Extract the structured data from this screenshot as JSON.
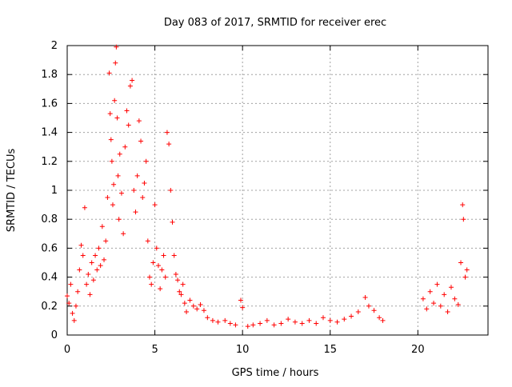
{
  "chart_data": {
    "type": "scatter",
    "title": "Day 083 of 2017, SRMTID for receiver erec",
    "xlabel": "GPS time / hours",
    "ylabel": "SRMTID / TECUs",
    "xlim": [
      0,
      24
    ],
    "ylim": [
      0,
      2
    ],
    "xticks": [
      0,
      5,
      10,
      15,
      20
    ],
    "xtick_labels": [
      "0",
      "5",
      "10",
      "15",
      "20"
    ],
    "yticks": [
      0,
      0.2,
      0.4,
      0.6,
      0.8,
      1,
      1.2,
      1.4,
      1.6,
      1.8,
      2
    ],
    "ytick_labels": [
      "0",
      "0.2",
      "0.4",
      "0.6",
      "0.8",
      "1",
      "1.2",
      "1.4",
      "1.6",
      "1.8",
      "2"
    ],
    "grid": true,
    "marker": "+",
    "marker_color": "#ff0000",
    "series": [
      {
        "name": "SRMTID",
        "points": [
          [
            0.0,
            0.27
          ],
          [
            0.1,
            0.22
          ],
          [
            0.2,
            0.35
          ],
          [
            0.3,
            0.15
          ],
          [
            0.4,
            0.1
          ],
          [
            0.5,
            0.2
          ],
          [
            0.6,
            0.3
          ],
          [
            0.7,
            0.45
          ],
          [
            0.8,
            0.62
          ],
          [
            0.9,
            0.55
          ],
          [
            1.0,
            0.88
          ],
          [
            1.1,
            0.35
          ],
          [
            1.2,
            0.42
          ],
          [
            1.3,
            0.28
          ],
          [
            1.4,
            0.5
          ],
          [
            1.5,
            0.38
          ],
          [
            1.6,
            0.55
          ],
          [
            1.7,
            0.45
          ],
          [
            1.8,
            0.6
          ],
          [
            1.9,
            0.48
          ],
          [
            2.0,
            0.75
          ],
          [
            2.1,
            0.52
          ],
          [
            2.2,
            0.65
          ],
          [
            2.3,
            0.95
          ],
          [
            2.4,
            1.81
          ],
          [
            2.45,
            1.53
          ],
          [
            2.5,
            1.35
          ],
          [
            2.55,
            1.2
          ],
          [
            2.6,
            0.9
          ],
          [
            2.65,
            1.04
          ],
          [
            2.7,
            1.62
          ],
          [
            2.75,
            1.88
          ],
          [
            2.8,
            1.99
          ],
          [
            2.85,
            1.5
          ],
          [
            2.9,
            1.1
          ],
          [
            2.95,
            0.8
          ],
          [
            3.0,
            1.25
          ],
          [
            3.1,
            0.98
          ],
          [
            3.2,
            0.7
          ],
          [
            3.3,
            1.3
          ],
          [
            3.4,
            1.55
          ],
          [
            3.5,
            1.45
          ],
          [
            3.6,
            1.72
          ],
          [
            3.7,
            1.76
          ],
          [
            3.8,
            1.0
          ],
          [
            3.9,
            0.85
          ],
          [
            4.0,
            1.1
          ],
          [
            4.1,
            1.48
          ],
          [
            4.2,
            1.34
          ],
          [
            4.3,
            0.95
          ],
          [
            4.4,
            1.05
          ],
          [
            4.5,
            1.2
          ],
          [
            4.6,
            0.65
          ],
          [
            4.7,
            0.4
          ],
          [
            4.8,
            0.35
          ],
          [
            4.9,
            0.5
          ],
          [
            5.0,
            0.9
          ],
          [
            5.1,
            0.6
          ],
          [
            5.2,
            0.48
          ],
          [
            5.3,
            0.32
          ],
          [
            5.4,
            0.45
          ],
          [
            5.5,
            0.55
          ],
          [
            5.6,
            0.4
          ],
          [
            5.7,
            1.4
          ],
          [
            5.8,
            1.32
          ],
          [
            5.9,
            1.0
          ],
          [
            6.0,
            0.78
          ],
          [
            6.1,
            0.55
          ],
          [
            6.2,
            0.42
          ],
          [
            6.3,
            0.38
          ],
          [
            6.4,
            0.3
          ],
          [
            6.5,
            0.28
          ],
          [
            6.6,
            0.35
          ],
          [
            6.7,
            0.22
          ],
          [
            6.8,
            0.16
          ],
          [
            7.0,
            0.24
          ],
          [
            7.2,
            0.2
          ],
          [
            7.4,
            0.18
          ],
          [
            7.6,
            0.21
          ],
          [
            7.8,
            0.17
          ],
          [
            8.0,
            0.12
          ],
          [
            8.3,
            0.1
          ],
          [
            8.6,
            0.09
          ],
          [
            9.0,
            0.1
          ],
          [
            9.3,
            0.08
          ],
          [
            9.6,
            0.07
          ],
          [
            9.9,
            0.24
          ],
          [
            10.0,
            0.19
          ],
          [
            10.3,
            0.06
          ],
          [
            10.6,
            0.07
          ],
          [
            11.0,
            0.08
          ],
          [
            11.4,
            0.1
          ],
          [
            11.8,
            0.07
          ],
          [
            12.2,
            0.08
          ],
          [
            12.6,
            0.11
          ],
          [
            13.0,
            0.09
          ],
          [
            13.4,
            0.08
          ],
          [
            13.8,
            0.1
          ],
          [
            14.2,
            0.08
          ],
          [
            14.6,
            0.12
          ],
          [
            15.0,
            0.1
          ],
          [
            15.4,
            0.09
          ],
          [
            15.8,
            0.11
          ],
          [
            16.2,
            0.13
          ],
          [
            16.6,
            0.16
          ],
          [
            17.0,
            0.26
          ],
          [
            17.2,
            0.2
          ],
          [
            17.5,
            0.17
          ],
          [
            17.8,
            0.12
          ],
          [
            18.0,
            0.1
          ],
          [
            20.3,
            0.25
          ],
          [
            20.5,
            0.18
          ],
          [
            20.7,
            0.3
          ],
          [
            20.9,
            0.22
          ],
          [
            21.1,
            0.35
          ],
          [
            21.3,
            0.2
          ],
          [
            21.5,
            0.28
          ],
          [
            21.7,
            0.16
          ],
          [
            21.9,
            0.33
          ],
          [
            22.1,
            0.25
          ],
          [
            22.3,
            0.21
          ],
          [
            22.45,
            0.5
          ],
          [
            22.55,
            0.9
          ],
          [
            22.6,
            0.8
          ],
          [
            22.7,
            0.4
          ],
          [
            22.8,
            0.45
          ]
        ]
      }
    ]
  }
}
